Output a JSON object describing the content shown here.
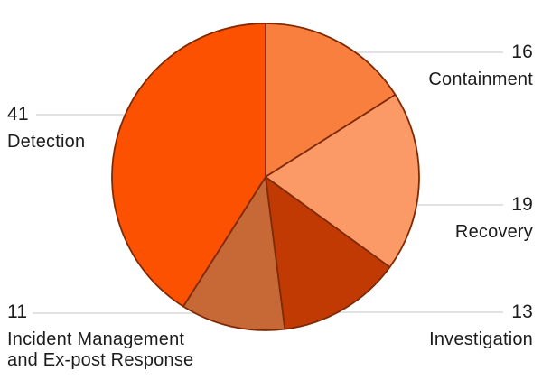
{
  "chart_data": {
    "type": "pie",
    "title": "",
    "start_angle_deg": 0,
    "direction": "clockwise",
    "legend": "none",
    "label_style": "callout-with-leader-line",
    "stroke_color": "#7F2A04",
    "leader_line_color": "#D8D8D8",
    "text_color": "#1C1C1C",
    "background_color": "#FFFFFF",
    "slices": [
      {
        "id": "containment",
        "label": "Containment",
        "value": 16,
        "color": "#F97F3F"
      },
      {
        "id": "recovery",
        "label": "Recovery",
        "value": 19,
        "color": "#FB9A67"
      },
      {
        "id": "investigation",
        "label": "Investigation",
        "value": 13,
        "color": "#C13A04"
      },
      {
        "id": "incident-management",
        "label": "Incident Management and Ex-post Response",
        "value": 11,
        "color": "#C76936"
      },
      {
        "id": "detection",
        "label": "Detection",
        "value": 41,
        "color": "#FB5100"
      }
    ]
  }
}
